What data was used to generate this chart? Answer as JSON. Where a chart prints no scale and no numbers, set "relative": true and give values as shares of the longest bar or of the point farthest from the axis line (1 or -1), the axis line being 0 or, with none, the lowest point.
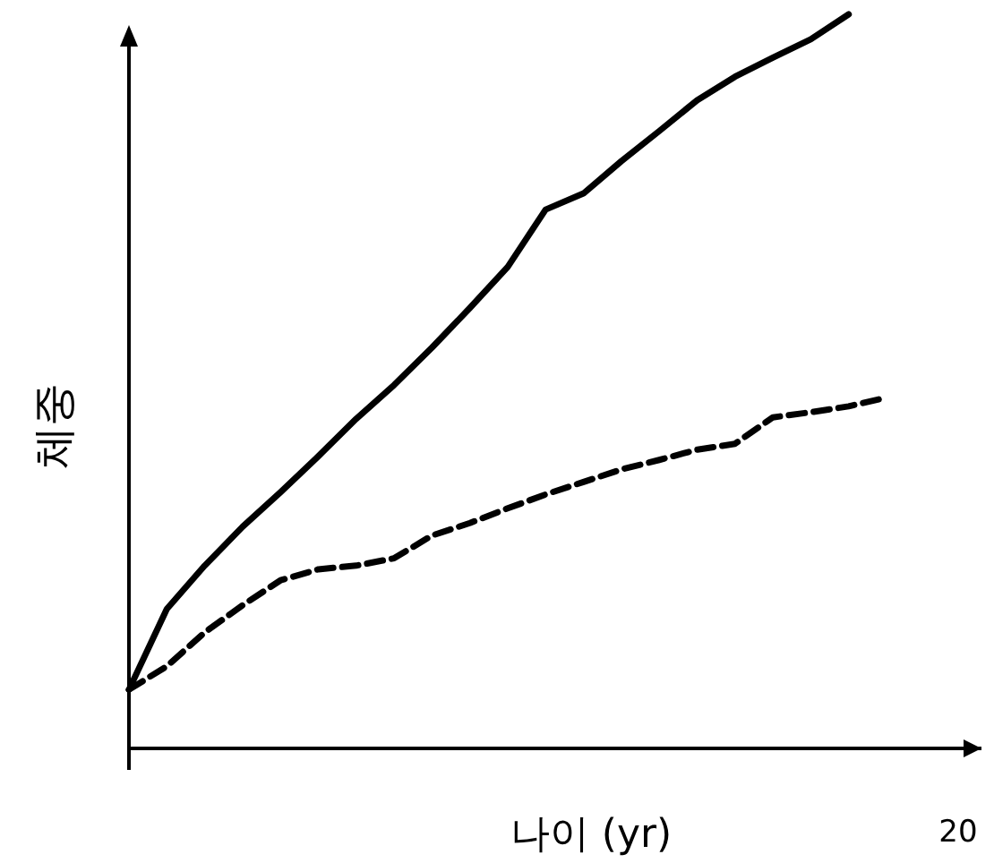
{
  "chart_data": {
    "type": "line",
    "xlabel": "나이 (yr)",
    "ylabel": "체중",
    "relative": true,
    "annotations": [
      "20"
    ],
    "categories": [
      null,
      null,
      null,
      null,
      null,
      null,
      null,
      null,
      null,
      null,
      null,
      null,
      null,
      null,
      null,
      null,
      null,
      null,
      null,
      null,
      null
    ],
    "series": [
      {
        "color": "#000000",
        "line_style": "solid",
        "values": [
          0.08,
          0.19,
          0.249,
          0.302,
          0.349,
          0.398,
          0.449,
          0.495,
          0.546,
          0.6,
          0.656,
          0.734,
          0.756,
          0.8,
          0.841,
          0.883,
          0.915,
          0.941,
          0.966,
          1,
          null
        ]
      },
      {
        "color": "#000000",
        "line_style": "dashed",
        "values": [
          0.08,
          0.112,
          0.158,
          0.195,
          0.229,
          0.244,
          0.249,
          0.259,
          0.29,
          0.307,
          0.327,
          0.346,
          0.363,
          0.38,
          0.393,
          0.407,
          0.415,
          0.451,
          0.458,
          0.466,
          0.478
        ]
      }
    ]
  }
}
